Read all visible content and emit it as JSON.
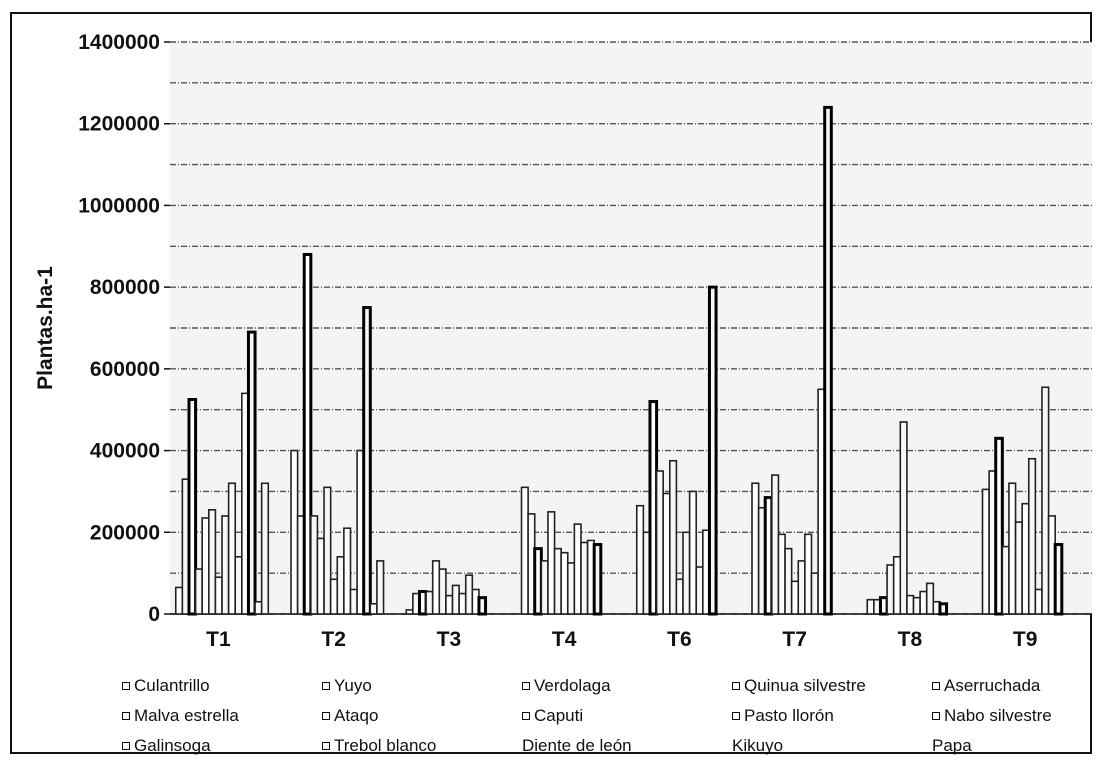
{
  "chart_data": {
    "type": "bar",
    "title": "",
    "xlabel": "",
    "ylabel": "Plantas.ha-1",
    "ylim": [
      0,
      1400000
    ],
    "yticks": [
      0,
      200000,
      400000,
      600000,
      800000,
      1000000,
      1200000,
      1400000
    ],
    "ytick_labels": [
      "0",
      "200000",
      "400000",
      "600000",
      "800000",
      "1000000",
      "1200000",
      "1400000"
    ],
    "categories": [
      "T1",
      "T2",
      "T3",
      "T4",
      "T6",
      "T7",
      "T8",
      "T9"
    ],
    "grid": true,
    "legend_position": "bottom",
    "series": [
      {
        "name": "Culantrillo",
        "values": [
          65000,
          400000,
          10000,
          310000,
          265000,
          320000,
          35000,
          305000
        ]
      },
      {
        "name": "Yuyo",
        "values": [
          330000,
          240000,
          50000,
          245000,
          200000,
          260000,
          35000,
          350000
        ]
      },
      {
        "name": "Verdolaga",
        "values": [
          525000,
          880000,
          55000,
          160000,
          520000,
          285000,
          40000,
          430000
        ]
      },
      {
        "name": "Quinua silvestre",
        "values": [
          110000,
          240000,
          55000,
          130000,
          350000,
          340000,
          120000,
          165000
        ]
      },
      {
        "name": "Aserruchada",
        "values": [
          235000,
          185000,
          130000,
          250000,
          295000,
          195000,
          140000,
          320000
        ]
      },
      {
        "name": "Malva estrella",
        "values": [
          255000,
          310000,
          110000,
          160000,
          375000,
          160000,
          470000,
          225000
        ]
      },
      {
        "name": "Ataqo",
        "values": [
          90000,
          85000,
          45000,
          150000,
          85000,
          80000,
          45000,
          270000
        ]
      },
      {
        "name": "Caputi",
        "values": [
          240000,
          140000,
          70000,
          125000,
          200000,
          130000,
          40000,
          380000
        ]
      },
      {
        "name": "Pasto llorón",
        "values": [
          320000,
          210000,
          50000,
          220000,
          300000,
          195000,
          55000,
          60000
        ]
      },
      {
        "name": "Nabo silvestre",
        "values": [
          140000,
          60000,
          95000,
          175000,
          115000,
          100000,
          75000,
          555000
        ]
      },
      {
        "name": "Galinsoga",
        "values": [
          540000,
          400000,
          60000,
          180000,
          205000,
          550000,
          30000,
          240000
        ]
      },
      {
        "name": "Trebol blanco",
        "values": [
          690000,
          750000,
          40000,
          170000,
          800000,
          1240000,
          25000,
          170000
        ]
      },
      {
        "name": "Diente de león",
        "values": [
          30000,
          25000,
          0,
          0,
          0,
          0,
          0,
          0
        ]
      },
      {
        "name": "Kikuyo",
        "values": [
          320000,
          130000,
          0,
          0,
          0,
          0,
          0,
          0
        ]
      },
      {
        "name": "Papa",
        "values": [
          0,
          0,
          0,
          0,
          0,
          0,
          0,
          0
        ]
      }
    ]
  }
}
